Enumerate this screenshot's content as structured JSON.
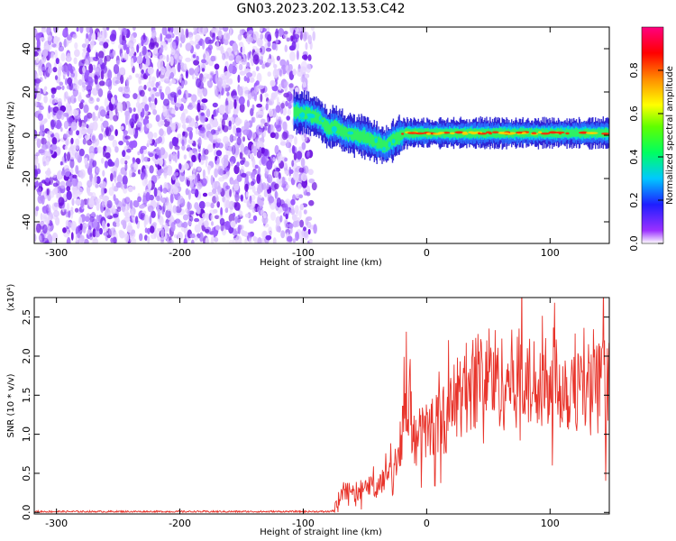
{
  "title": "GN03.2023.202.13.53.C42",
  "chart_data": [
    {
      "type": "heatmap",
      "xlabel": "Height of straight line (km)",
      "ylabel": "Frequency (Hz)",
      "xlim": [
        -318,
        148
      ],
      "ylim": [
        -50,
        50
      ],
      "xticks": [
        -300,
        -200,
        -100,
        0,
        100
      ],
      "yticks": [
        -40,
        -20,
        0,
        20,
        40
      ],
      "noise_region_x": [
        -318,
        -90
      ],
      "signal_track": {
        "x": [
          -108,
          -98,
          -88,
          -80,
          -74,
          -66,
          -58,
          -50,
          -42,
          -34,
          -30,
          -24,
          -18,
          -10,
          0,
          20,
          40,
          60,
          80,
          100,
          120,
          148
        ],
        "freq": [
          11,
          10,
          8,
          3,
          4,
          1,
          0,
          -1,
          -3,
          -5,
          -3,
          -1,
          1,
          1,
          1,
          1,
          1,
          1,
          1,
          1,
          1,
          1
        ]
      },
      "colorbar": {
        "label": "Normalized spectral amplitude",
        "range": [
          0.0,
          1.0
        ],
        "ticks": [
          "0.0",
          "0.2",
          "0.4",
          "0.6",
          "0.8"
        ]
      }
    },
    {
      "type": "line",
      "xlabel": "Height of straight line (km)",
      "ylabel": "SNR (10 * v/v)",
      "y_multiplier": "(x10⁴)",
      "xlim": [
        -318,
        148
      ],
      "ylim": [
        -0.02,
        2.75
      ],
      "xticks": [
        -300,
        -200,
        -100,
        0,
        100
      ],
      "yticks": [
        0.0,
        0.5,
        1.0,
        1.5,
        2.0,
        2.5
      ],
      "color": "#e8332a",
      "series": [
        {
          "x": [
            -318,
            -250,
            -200,
            -150,
            -100,
            -80,
            -75,
            -72,
            -68,
            -65,
            -60,
            -55,
            -50,
            -45,
            -40,
            -36,
            -33,
            -30,
            -27,
            -25,
            -22,
            -20,
            -18,
            -16,
            -15,
            -14,
            -13,
            -12,
            -10,
            -8,
            -5,
            0,
            5,
            10,
            15,
            20,
            25,
            30,
            35,
            40,
            45,
            50,
            55,
            60,
            65,
            70,
            75,
            80,
            85,
            90,
            95,
            97,
            100,
            105,
            110,
            115,
            120,
            125,
            130,
            135,
            140,
            145,
            148
          ],
          "y": [
            0.01,
            0.01,
            0.01,
            0.01,
            0.01,
            0.01,
            0.02,
            0.15,
            0.25,
            0.3,
            0.22,
            0.3,
            0.28,
            0.35,
            0.32,
            0.4,
            0.45,
            0.5,
            0.55,
            0.65,
            0.85,
            1.05,
            1.2,
            1.4,
            1.3,
            1.5,
            1.6,
            0.9,
            0.95,
            0.9,
            1.0,
            1.05,
            1.1,
            1.15,
            1.2,
            1.3,
            1.5,
            1.55,
            1.65,
            1.7,
            1.75,
            1.8,
            1.75,
            1.65,
            1.7,
            1.7,
            1.75,
            1.7,
            1.6,
            1.75,
            1.8,
            1.85,
            1.75,
            1.7,
            1.65,
            1.6,
            1.7,
            1.6,
            1.65,
            1.55,
            1.6,
            1.65,
            1.65
          ]
        }
      ]
    }
  ]
}
